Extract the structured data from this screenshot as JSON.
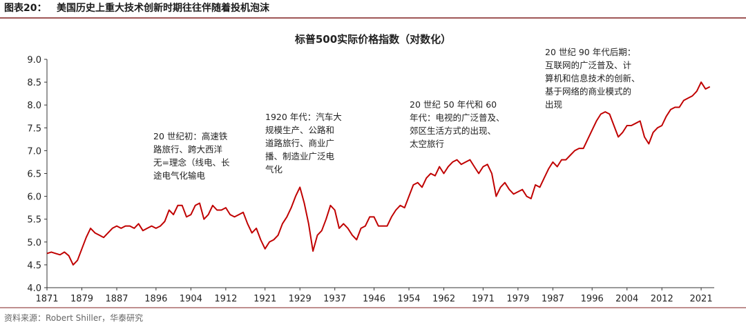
{
  "header": {
    "figure_label": "图表20：",
    "title": "美国历史上重大技术创新时期往往伴随着投机泡沫"
  },
  "footer": {
    "source": "资料来源：Robert Shiller，华泰研究"
  },
  "chart_data": {
    "type": "line",
    "title": "标普500实际价格指数（对数化）",
    "x": [
      1871,
      1872,
      1873,
      1874,
      1875,
      1876,
      1877,
      1878,
      1879,
      1880,
      1881,
      1882,
      1883,
      1884,
      1885,
      1886,
      1887,
      1888,
      1889,
      1890,
      1891,
      1892,
      1893,
      1894,
      1895,
      1896,
      1897,
      1898,
      1899,
      1900,
      1901,
      1902,
      1903,
      1904,
      1905,
      1906,
      1907,
      1908,
      1909,
      1910,
      1911,
      1912,
      1913,
      1914,
      1915,
      1916,
      1917,
      1918,
      1919,
      1920,
      1921,
      1922,
      1923,
      1924,
      1925,
      1926,
      1927,
      1928,
      1929,
      1930,
      1931,
      1932,
      1933,
      1934,
      1935,
      1936,
      1937,
      1938,
      1939,
      1940,
      1941,
      1942,
      1943,
      1944,
      1945,
      1946,
      1947,
      1948,
      1949,
      1950,
      1951,
      1952,
      1953,
      1954,
      1955,
      1956,
      1957,
      1958,
      1959,
      1960,
      1961,
      1962,
      1963,
      1964,
      1965,
      1966,
      1967,
      1968,
      1969,
      1970,
      1971,
      1972,
      1973,
      1974,
      1975,
      1976,
      1977,
      1978,
      1979,
      1980,
      1981,
      1982,
      1983,
      1984,
      1985,
      1986,
      1987,
      1988,
      1989,
      1990,
      1991,
      1992,
      1993,
      1994,
      1995,
      1996,
      1997,
      1998,
      1999,
      2000,
      2001,
      2002,
      2003,
      2004,
      2005,
      2006,
      2007,
      2008,
      2009,
      2010,
      2011,
      2012,
      2013,
      2014,
      2015,
      2016,
      2017,
      2018,
      2019,
      2020,
      2021,
      2022,
      2023
    ],
    "series": [
      {
        "name": "标普500实际价格指数（对数化）",
        "color": "#c00000",
        "values": [
          4.75,
          4.78,
          4.75,
          4.72,
          4.78,
          4.7,
          4.5,
          4.6,
          4.85,
          5.1,
          5.3,
          5.2,
          5.15,
          5.1,
          5.2,
          5.3,
          5.35,
          5.3,
          5.35,
          5.35,
          5.3,
          5.4,
          5.25,
          5.3,
          5.35,
          5.3,
          5.35,
          5.45,
          5.7,
          5.6,
          5.8,
          5.8,
          5.55,
          5.6,
          5.8,
          5.85,
          5.5,
          5.6,
          5.8,
          5.7,
          5.7,
          5.75,
          5.6,
          5.55,
          5.6,
          5.65,
          5.4,
          5.2,
          5.3,
          5.05,
          4.85,
          5.0,
          5.05,
          5.15,
          5.4,
          5.55,
          5.75,
          6.0,
          6.2,
          5.85,
          5.4,
          4.8,
          5.15,
          5.25,
          5.5,
          5.8,
          5.7,
          5.3,
          5.4,
          5.3,
          5.15,
          5.05,
          5.3,
          5.35,
          5.55,
          5.55,
          5.35,
          5.35,
          5.35,
          5.55,
          5.7,
          5.8,
          5.75,
          6.0,
          6.25,
          6.3,
          6.2,
          6.4,
          6.5,
          6.45,
          6.65,
          6.5,
          6.65,
          6.75,
          6.8,
          6.7,
          6.75,
          6.8,
          6.65,
          6.5,
          6.65,
          6.7,
          6.5,
          6.0,
          6.2,
          6.3,
          6.15,
          6.05,
          6.1,
          6.15,
          6.0,
          5.95,
          6.25,
          6.2,
          6.4,
          6.6,
          6.75,
          6.65,
          6.8,
          6.8,
          6.9,
          7.0,
          7.05,
          7.05,
          7.25,
          7.45,
          7.65,
          7.8,
          7.85,
          7.8,
          7.55,
          7.3,
          7.4,
          7.55,
          7.55,
          7.6,
          7.65,
          7.3,
          7.15,
          7.4,
          7.5,
          7.55,
          7.75,
          7.9,
          7.95,
          7.95,
          8.1,
          8.15,
          8.2,
          8.3,
          8.5,
          8.35,
          8.4
        ]
      }
    ],
    "xlim": [
      1871,
      2024
    ],
    "xticks": [
      1871,
      1879,
      1887,
      1896,
      1904,
      1912,
      1921,
      1929,
      1937,
      1946,
      1954,
      1962,
      1971,
      1979,
      1987,
      1996,
      2004,
      2012,
      2021
    ],
    "ylim": [
      4.0,
      9.0
    ],
    "yticks": [
      {
        "value": 4,
        "label": "4.0"
      },
      4.5,
      {
        "value": 5,
        "label": "5.0"
      },
      5.5,
      {
        "value": 6,
        "label": "6.0"
      },
      6.5,
      {
        "value": 7,
        "label": "7.0"
      },
      7.5,
      {
        "value": 8,
        "label": "8.0"
      },
      8.5,
      {
        "value": 9,
        "label": "9.0"
      }
    ],
    "grid": false,
    "annotations": [
      {
        "lines": [
          "20 世纪初：高速铁",
          "路旅行、跨大西洋",
          "无=理念（线电、长",
          "途电气化输电"
        ]
      },
      {
        "lines": [
          "1920 年代：汽车大",
          "规模生产、公路和",
          "道路旅行、商业广",
          "播、制造业广泛电",
          "气化"
        ]
      },
      {
        "lines": [
          "20 世纪 50 年代和 60",
          "年代：电视的广泛普及、",
          "郊区生活方式的出现、",
          "太空旅行"
        ]
      },
      {
        "lines": [
          "20 世纪 90 年代后期：",
          "互联网的广泛普及、计",
          "算机和信息技术的创新、",
          "基于网络的商业模式的",
          "出现"
        ]
      }
    ]
  }
}
